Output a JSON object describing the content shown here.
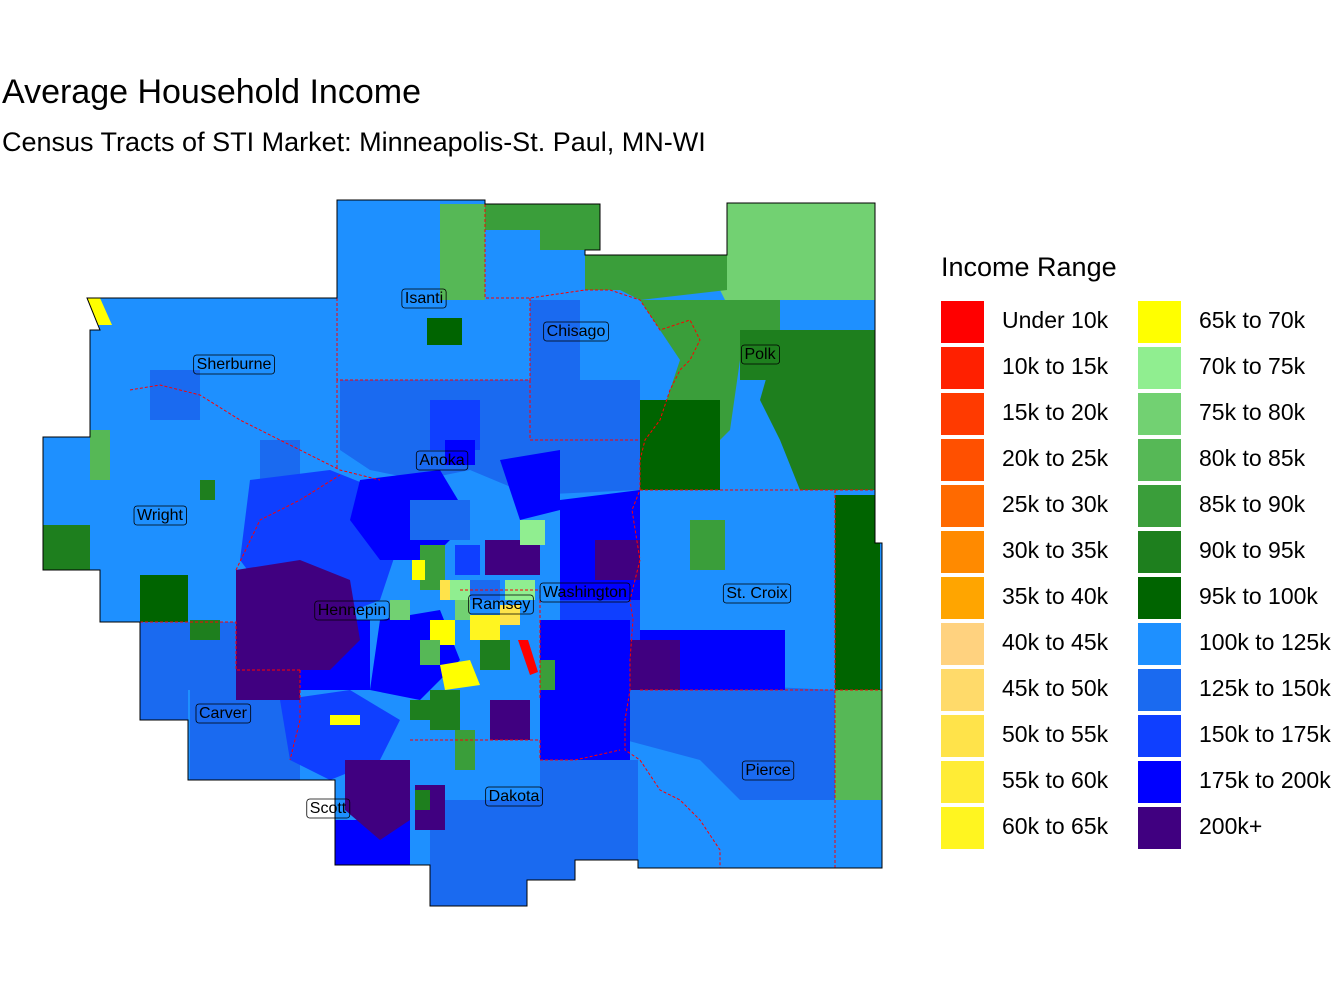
{
  "title": "Average Household Income",
  "subtitle": "Census Tracts of STI Market: Minneapolis-St. Paul, MN-WI",
  "legend": {
    "title": "Income Range",
    "items": [
      {
        "label": "Under 10k",
        "color": "#FF0000"
      },
      {
        "label": "10k to 15k",
        "color": "#FF2000"
      },
      {
        "label": "15k to 20k",
        "color": "#FF3A00"
      },
      {
        "label": "20k to 25k",
        "color": "#FF5000"
      },
      {
        "label": "25k to 30k",
        "color": "#FF6A00"
      },
      {
        "label": "30k to 35k",
        "color": "#FF8A00"
      },
      {
        "label": "35k to 40k",
        "color": "#FFA500"
      },
      {
        "label": "40k to 45k",
        "color": "#FFD27F"
      },
      {
        "label": "45k to 50k",
        "color": "#FFDA6A"
      },
      {
        "label": "50k to 55k",
        "color": "#FFE34A"
      },
      {
        "label": "55k to 60k",
        "color": "#FFEC35"
      },
      {
        "label": "60k to 65k",
        "color": "#FFF520"
      },
      {
        "label": "65k to 70k",
        "color": "#FFFF00"
      },
      {
        "label": "70k to 75k",
        "color": "#90EE90"
      },
      {
        "label": "75k to 80k",
        "color": "#72D172"
      },
      {
        "label": "80k to 85k",
        "color": "#56B856"
      },
      {
        "label": "85k to 90k",
        "color": "#3A9E3A"
      },
      {
        "label": "90k to 95k",
        "color": "#1E7F1E"
      },
      {
        "label": "95k to 100k",
        "color": "#006400"
      },
      {
        "label": "100k to 125k",
        "color": "#1E90FF"
      },
      {
        "label": "125k to 150k",
        "color": "#1A6AF0"
      },
      {
        "label": "150k to 175k",
        "color": "#0F3FFF"
      },
      {
        "label": "175k to 200k",
        "color": "#0000FF"
      },
      {
        "label": "200k+",
        "color": "#400080"
      }
    ]
  },
  "counties": [
    {
      "name": "Isanti"
    },
    {
      "name": "Chisago"
    },
    {
      "name": "Sherburne"
    },
    {
      "name": "Polk"
    },
    {
      "name": "Anoka"
    },
    {
      "name": "Wright"
    },
    {
      "name": "Washington"
    },
    {
      "name": "St. Croix"
    },
    {
      "name": "Hennepin"
    },
    {
      "name": "Ramsey"
    },
    {
      "name": "Carver"
    },
    {
      "name": "Pierce"
    },
    {
      "name": "Scott"
    },
    {
      "name": "Dakota"
    }
  ]
}
